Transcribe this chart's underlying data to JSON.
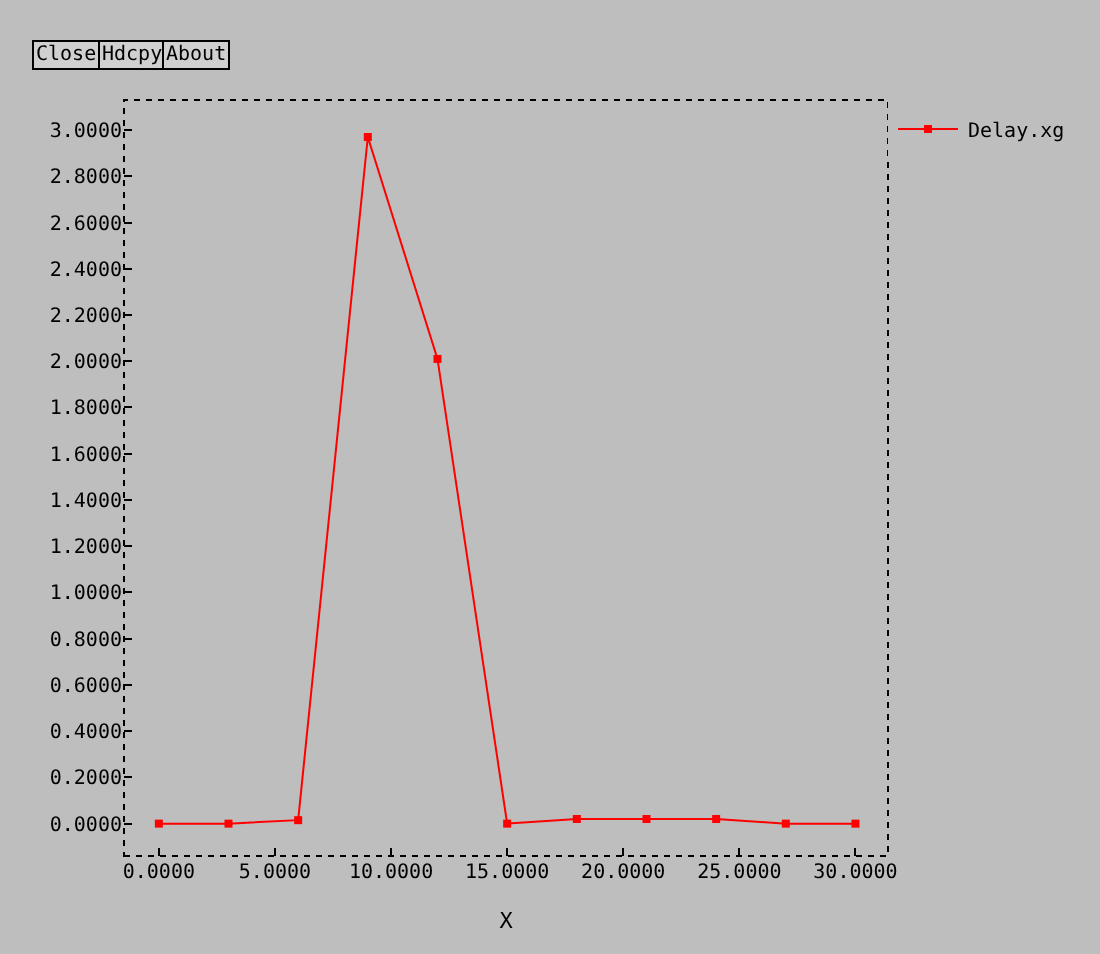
{
  "chart_data": {
    "type": "line",
    "xlabel": "X",
    "legend": "top right",
    "marker": "square",
    "line_style": "solid",
    "grid": false,
    "annotations": [
      "Close",
      "Hdcpy",
      "About"
    ],
    "x": [
      0,
      3,
      6,
      9,
      12,
      15,
      18,
      21,
      24,
      27,
      30
    ],
    "series": [
      {
        "name": "Delay.xg",
        "color": "#ff0000",
        "values": [
          0,
          0,
          0.015,
          2.97,
          2.01,
          0,
          0.02,
          0.02,
          0.02,
          0,
          0
        ]
      }
    ],
    "xlim": [
      -1.5,
      31.4
    ],
    "ylim": [
      -0.14,
      3.13
    ],
    "xticks": [
      {
        "value": 0,
        "label": "0.0000"
      },
      {
        "value": 5,
        "label": "5.0000"
      },
      {
        "value": 10,
        "label": "10.0000"
      },
      {
        "value": 15,
        "label": "15.0000"
      },
      {
        "value": 20,
        "label": "20.0000"
      },
      {
        "value": 25,
        "label": "25.0000"
      },
      {
        "value": 30,
        "label": "30.0000"
      }
    ],
    "yticks": [
      {
        "value": 0,
        "label": "0.0000"
      },
      {
        "value": 0.2,
        "label": "0.2000"
      },
      {
        "value": 0.4,
        "label": "0.4000"
      },
      {
        "value": 0.6,
        "label": "0.6000"
      },
      {
        "value": 0.8,
        "label": "0.8000"
      },
      {
        "value": 1.0,
        "label": "1.0000"
      },
      {
        "value": 1.2,
        "label": "1.2000"
      },
      {
        "value": 1.4,
        "label": "1.4000"
      },
      {
        "value": 1.6,
        "label": "1.6000"
      },
      {
        "value": 1.8,
        "label": "1.8000"
      },
      {
        "value": 2.0,
        "label": "2.0000"
      },
      {
        "value": 2.2,
        "label": "2.2000"
      },
      {
        "value": 2.4,
        "label": "2.4000"
      },
      {
        "value": 2.6,
        "label": "2.6000"
      },
      {
        "value": 2.8,
        "label": "2.8000"
      },
      {
        "value": 3.0,
        "label": "3.0000"
      }
    ]
  }
}
